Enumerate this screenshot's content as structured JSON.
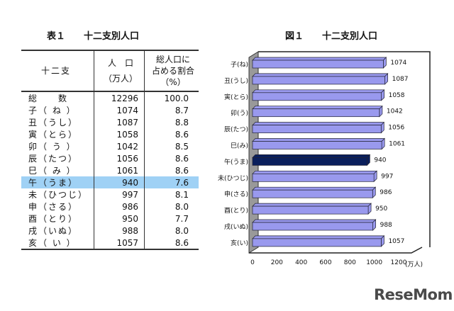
{
  "table": {
    "title": "表１　　十二支別人口",
    "headers": {
      "zodiac": "十二支",
      "pop_line1": "人　口",
      "pop_line2": "（万人）",
      "pct_line1": "総人口に",
      "pct_line2": "占める割合",
      "pct_line3": "（%）"
    },
    "rows": [
      {
        "label": "総　　数",
        "pop": "12296",
        "pct": "100.0"
      },
      {
        "label": "子（ ね ）",
        "pop": "1074",
        "pct": "8.7"
      },
      {
        "label": "丑（うし）",
        "pop": "1087",
        "pct": "8.8"
      },
      {
        "label": "寅（とら）",
        "pop": "1058",
        "pct": "8.6"
      },
      {
        "label": "卯（ う ）",
        "pop": "1042",
        "pct": "8.5"
      },
      {
        "label": "辰（たつ）",
        "pop": "1056",
        "pct": "8.6"
      },
      {
        "label": "巳（ み ）",
        "pop": "1061",
        "pct": "8.6"
      },
      {
        "label": "午（うま）",
        "pop": "940",
        "pct": "7.6",
        "highlight": true
      },
      {
        "label": "未（ひつじ）",
        "pop": "997",
        "pct": "8.1"
      },
      {
        "label": "申（さる）",
        "pop": "986",
        "pct": "8.0"
      },
      {
        "label": "酉（とり）",
        "pop": "950",
        "pct": "7.7"
      },
      {
        "label": "戌（いぬ）",
        "pop": "988",
        "pct": "8.0"
      },
      {
        "label": "亥（ い ）",
        "pop": "1057",
        "pct": "8.6"
      }
    ],
    "highlight_color": "#9fd1f5"
  },
  "chart_data": {
    "type": "bar",
    "orientation": "horizontal",
    "title": "図１　　十二支別人口",
    "categories": [
      "子(ね)",
      "丑(うし)",
      "寅(とら)",
      "卯(う)",
      "辰(たつ)",
      "巳(み)",
      "午(うま)",
      "未(ひつじ)",
      "申(さる)",
      "酉(とり)",
      "戌(いぬ)",
      "亥(い)"
    ],
    "values": [
      1074,
      1087,
      1058,
      1042,
      1056,
      1061,
      940,
      997,
      986,
      950,
      988,
      1057
    ],
    "xlim": [
      0,
      1200
    ],
    "xticks": [
      0,
      200,
      400,
      600,
      800,
      1000,
      1200
    ],
    "xunit": "(万人)",
    "bar_color": "#9999ee",
    "highlight_color": "#0a1f5c",
    "highlight_index": 6,
    "grid": false
  },
  "logo": "ReseMom"
}
